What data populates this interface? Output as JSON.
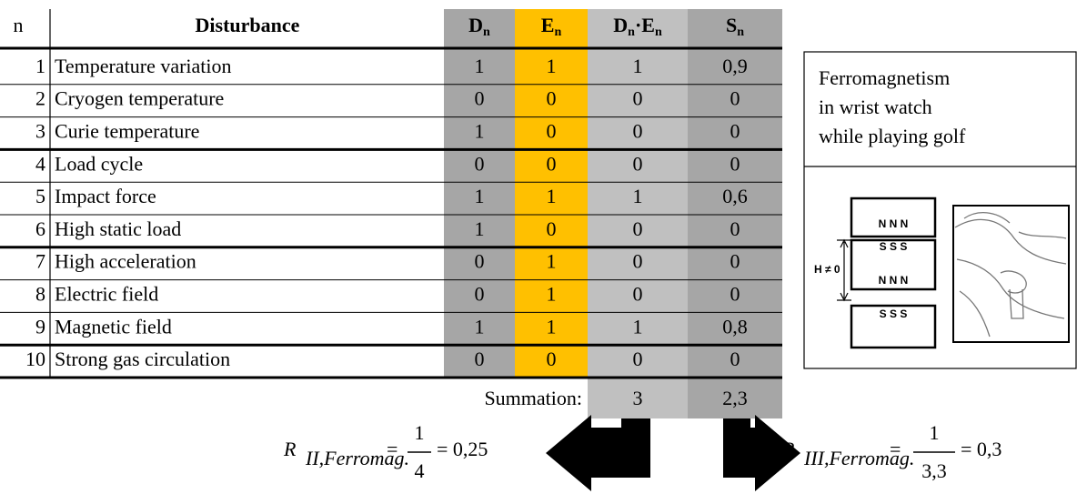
{
  "table": {
    "header": {
      "n": "n",
      "disturbance": "Disturbance",
      "d": {
        "base": "D",
        "sub": "n"
      },
      "e": {
        "base": "E",
        "sub": "n"
      },
      "de": {
        "base": "D",
        "sub": "n",
        "mid": "·E",
        "sub2": "n"
      },
      "s": {
        "base": "S",
        "sub": "n"
      }
    },
    "rows": [
      [
        "1",
        "Temperature variation",
        "1",
        "1",
        "1",
        "0,9"
      ],
      [
        "2",
        "Cryogen temperature",
        "0",
        "0",
        "0",
        "0"
      ],
      [
        "3",
        "Curie temperature",
        "1",
        "0",
        "0",
        "0"
      ],
      [
        "4",
        "Load cycle",
        "0",
        "0",
        "0",
        "0"
      ],
      [
        "5",
        "Impact force",
        "1",
        "1",
        "1",
        "0,6"
      ],
      [
        "6",
        "High static load",
        "1",
        "0",
        "0",
        "0"
      ],
      [
        "7",
        "High acceleration",
        "0",
        "1",
        "0",
        "0"
      ],
      [
        "8",
        "Electric field",
        "0",
        "1",
        "0",
        "0"
      ],
      [
        "9",
        "Magnetic field",
        "1",
        "1",
        "1",
        "0,8"
      ],
      [
        "10",
        "Strong gas circulation",
        "0",
        "0",
        "0",
        "0"
      ]
    ],
    "summation": {
      "label": "Summation:",
      "de": "3",
      "s": "2,3"
    }
  },
  "panel": {
    "title": [
      "Ferromagnetism",
      "in wrist watch",
      "while playing golf"
    ],
    "magnets": {
      "top_n": "N N N",
      "mid_s": "S S S",
      "mid_n": "N N N",
      "bottom_s": "S S S"
    },
    "field": "H ≠ 0"
  },
  "formulas": [
    {
      "symbol": "R",
      "sub": "II,Ferromag.",
      "eq1": "=",
      "numerator": "1",
      "denominator": "4",
      "result": "= 0,25"
    },
    {
      "symbol": "R",
      "sub": "III,Ferromag.",
      "eq1": "=",
      "numerator": "1",
      "denominator": "3,3",
      "result": "= 0,3"
    }
  ]
}
